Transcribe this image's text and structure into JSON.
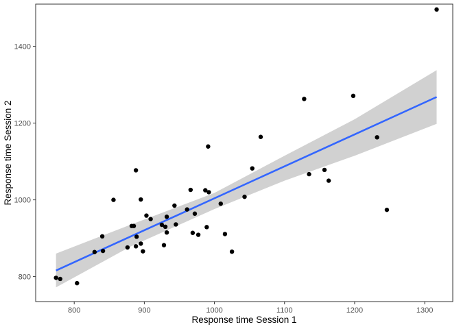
{
  "chart_data": {
    "type": "scatter",
    "title": "",
    "xlabel": "Response time Session 1",
    "ylabel": "Response time Session 2",
    "xlim": [
      745,
      1340
    ],
    "ylim": [
      735,
      1510
    ],
    "x_ticks": [
      800,
      900,
      1000,
      1100,
      1200,
      1300
    ],
    "y_ticks": [
      800,
      1000,
      1200,
      1400
    ],
    "grid": false,
    "legend": "none",
    "colors": {
      "points": "#000000",
      "fit_line": "#3366FF",
      "confidence_band": "#999999",
      "panel_border": "#333333",
      "tick_label": "#4d4d4d"
    },
    "points": [
      {
        "x": 774,
        "y": 797
      },
      {
        "x": 780,
        "y": 794
      },
      {
        "x": 804,
        "y": 783
      },
      {
        "x": 829,
        "y": 864
      },
      {
        "x": 840,
        "y": 905
      },
      {
        "x": 841,
        "y": 867
      },
      {
        "x": 856,
        "y": 1000
      },
      {
        "x": 876,
        "y": 876
      },
      {
        "x": 882,
        "y": 932
      },
      {
        "x": 885,
        "y": 932
      },
      {
        "x": 888,
        "y": 1077
      },
      {
        "x": 888,
        "y": 879
      },
      {
        "x": 889,
        "y": 904
      },
      {
        "x": 895,
        "y": 1001
      },
      {
        "x": 895,
        "y": 886
      },
      {
        "x": 898,
        "y": 866
      },
      {
        "x": 903,
        "y": 959
      },
      {
        "x": 909,
        "y": 950
      },
      {
        "x": 925,
        "y": 935
      },
      {
        "x": 928,
        "y": 882
      },
      {
        "x": 930,
        "y": 930
      },
      {
        "x": 932,
        "y": 956
      },
      {
        "x": 932,
        "y": 915
      },
      {
        "x": 943,
        "y": 985
      },
      {
        "x": 945,
        "y": 936
      },
      {
        "x": 961,
        "y": 975
      },
      {
        "x": 966,
        "y": 1026
      },
      {
        "x": 969,
        "y": 914
      },
      {
        "x": 972,
        "y": 964
      },
      {
        "x": 977,
        "y": 909
      },
      {
        "x": 987,
        "y": 1025
      },
      {
        "x": 989,
        "y": 929
      },
      {
        "x": 991,
        "y": 1139
      },
      {
        "x": 992,
        "y": 1020
      },
      {
        "x": 1009,
        "y": 990
      },
      {
        "x": 1015,
        "y": 911
      },
      {
        "x": 1025,
        "y": 865
      },
      {
        "x": 1043,
        "y": 1008
      },
      {
        "x": 1054,
        "y": 1082
      },
      {
        "x": 1066,
        "y": 1164
      },
      {
        "x": 1128,
        "y": 1263
      },
      {
        "x": 1135,
        "y": 1067
      },
      {
        "x": 1157,
        "y": 1078
      },
      {
        "x": 1163,
        "y": 1050
      },
      {
        "x": 1198,
        "y": 1271
      },
      {
        "x": 1232,
        "y": 1163
      },
      {
        "x": 1246,
        "y": 974
      },
      {
        "x": 1317,
        "y": 1496
      }
    ],
    "fit_line": {
      "x": [
        774,
        1317
      ],
      "y": [
        816,
        1268
      ]
    },
    "confidence_band": {
      "x": [
        774,
        880,
        1000,
        1100,
        1200,
        1317
      ],
      "lower": [
        772,
        878,
        976,
        1050,
        1115,
        1198
      ],
      "upper": [
        860,
        935,
        1018,
        1115,
        1210,
        1338
      ]
    }
  }
}
